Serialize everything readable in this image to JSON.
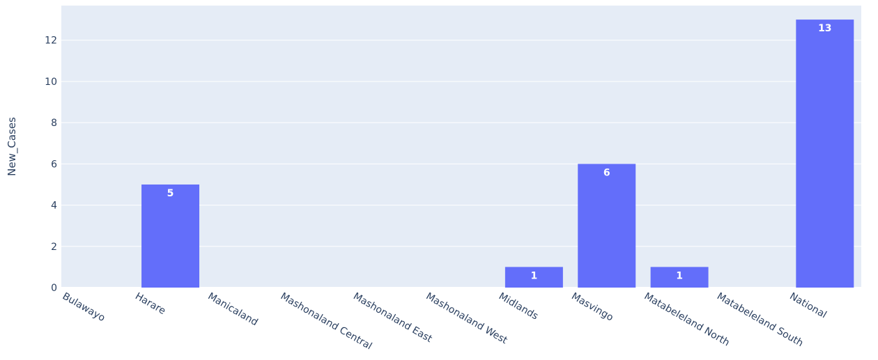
{
  "chart_data": {
    "type": "bar",
    "title": "",
    "xlabel": "",
    "ylabel": "New_Cases",
    "categories": [
      "Bulawayo",
      "Harare",
      "Manicaland",
      "Mashonaland Central",
      "Mashonaland East",
      "Mashonaland West",
      "Midlands",
      "Masvingo",
      "Matabeleland North",
      "Matabeleland South",
      "National"
    ],
    "values": [
      0,
      5,
      0,
      0,
      0,
      0,
      1,
      6,
      1,
      0,
      13
    ],
    "data_labels": [
      "",
      "5",
      "",
      "",
      "",
      "",
      "1",
      "6",
      "1",
      "",
      "13"
    ],
    "yticks": [
      0,
      2,
      4,
      6,
      8,
      10,
      12
    ],
    "ylim": [
      0,
      13.68
    ],
    "grid": true,
    "legend": "none",
    "colors": {
      "bar": "#636efa",
      "plot_bg": "#e5ecf6",
      "grid": "#ffffff",
      "tick_text": "#2a3f5f",
      "axis_title": "#2a3f5f",
      "label_text": "#ffffff"
    }
  }
}
